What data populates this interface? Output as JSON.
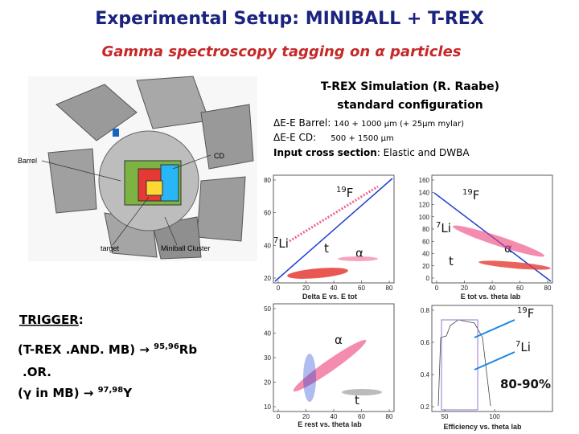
{
  "header": {
    "title": "Experimental Setup: MINIBALL + T-REX",
    "subtitle": "Gamma spectroscopy tagging on α particles"
  },
  "simulation": {
    "title": "T-REX Simulation (R. Raabe)",
    "subtitle": "standard configuration",
    "barrel": {
      "label": "ΔE-E Barrel:",
      "value": "140 + 1000 μm  (+ 25μm mylar)"
    },
    "cd": {
      "label": "ΔE-E CD:",
      "value": "500 + 1500 μm"
    },
    "cross_section": {
      "label": "Input cross section",
      "value": ": Elastic and DWBA"
    }
  },
  "setup_labels": [
    "Barrel",
    "CD",
    "target",
    "Miniball Cluster"
  ],
  "panels": [
    {
      "caption": "Delta E vs. E tot",
      "xticks": [
        0,
        20,
        40,
        60,
        80
      ],
      "yticks": [
        20,
        40,
        60,
        80
      ],
      "labels": [
        {
          "mass": "19",
          "symbol": "F"
        },
        {
          "mass": "7",
          "symbol": "Li"
        },
        {
          "symbol": "t"
        },
        {
          "symbol": "α"
        }
      ]
    },
    {
      "caption": "E tot vs. theta lab",
      "xticks": [
        0,
        20,
        40,
        60,
        80
      ],
      "yticks": [
        0,
        20,
        40,
        60,
        80,
        100,
        120,
        140,
        160
      ],
      "labels": [
        {
          "mass": "19",
          "symbol": "F"
        },
        {
          "mass": "7",
          "symbol": "Li"
        },
        {
          "symbol": "t"
        },
        {
          "symbol": "α"
        }
      ]
    },
    {
      "caption": "E rest vs. theta lab",
      "xticks": [
        0,
        20,
        40,
        60,
        80
      ],
      "yticks": [
        10,
        20,
        30,
        40,
        50
      ],
      "labels": [
        {
          "symbol": "α"
        },
        {
          "symbol": "t"
        }
      ]
    },
    {
      "caption": "Efficiency vs. theta lab",
      "xticks": [
        50,
        100
      ],
      "yticks": [
        0.2,
        0.4,
        0.6,
        0.8
      ],
      "labels": [
        {
          "mass": "19",
          "symbol": "F"
        },
        {
          "mass": "7",
          "symbol": "Li"
        },
        {
          "symbol": "80-90%"
        }
      ]
    }
  ],
  "trigger": {
    "title": "TRIGGER",
    "colon": ":",
    "line1": {
      "text": "(T-REX .AND. MB) → ",
      "mass": "95,96",
      "symbol": "Rb"
    },
    "line2": ".OR.",
    "line3": {
      "text": "(γ in MB) → ",
      "mass": "97,98",
      "symbol": "Y"
    }
  }
}
